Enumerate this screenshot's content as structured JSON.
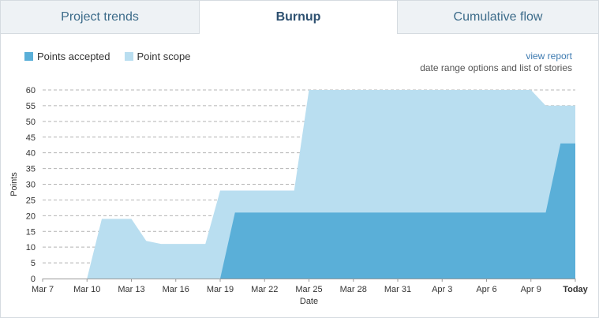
{
  "tabs": [
    {
      "label": "Project trends"
    },
    {
      "label": "Burnup"
    },
    {
      "label": "Cumulative flow"
    }
  ],
  "links": {
    "view_report": "view report",
    "subtext": "date range options and list of stories"
  },
  "colors": {
    "accepted": "#5aafd8",
    "scope": "#b9def0",
    "grid": "#b4b4b4",
    "axis": "#999999"
  },
  "chart_data": {
    "type": "area",
    "xlabel": "Date",
    "ylabel": "Points",
    "ylim": [
      0,
      60
    ],
    "yticks": [
      0,
      5,
      10,
      15,
      20,
      25,
      30,
      35,
      40,
      45,
      50,
      55,
      60
    ],
    "x_tick_labels": [
      "Mar 7",
      "Mar 10",
      "Mar 13",
      "Mar 16",
      "Mar 19",
      "Mar 22",
      "Mar 25",
      "Mar 28",
      "Mar 31",
      "Apr 3",
      "Apr 6",
      "Apr 9",
      "Today"
    ],
    "grid": true,
    "legend_position": "top-left",
    "series": [
      {
        "name": "Point scope",
        "x": [
          "Mar 7",
          "Mar 8",
          "Mar 9",
          "Mar 10",
          "Mar 11",
          "Mar 12",
          "Mar 13",
          "Mar 14",
          "Mar 15",
          "Mar 16",
          "Mar 17",
          "Mar 18",
          "Mar 19",
          "Mar 20",
          "Mar 21",
          "Mar 22",
          "Mar 23",
          "Mar 24",
          "Mar 25",
          "Mar 26",
          "Apr 9",
          "Apr 10",
          "Apr 11",
          "Today"
        ],
        "values": [
          0,
          0,
          0,
          0,
          19,
          19,
          19,
          12,
          11,
          11,
          11,
          11,
          28,
          28,
          28,
          28,
          28,
          28,
          60,
          60,
          60,
          55,
          55,
          55
        ]
      },
      {
        "name": "Points accepted",
        "x": [
          "Mar 7",
          "Mar 8",
          "Mar 9",
          "Mar 10",
          "Mar 11",
          "Mar 12",
          "Mar 13",
          "Mar 14",
          "Mar 15",
          "Mar 16",
          "Mar 17",
          "Mar 18",
          "Mar 19",
          "Mar 20",
          "Apr 9",
          "Apr 10",
          "Apr 11",
          "Today"
        ],
        "values": [
          0,
          0,
          0,
          0,
          0,
          0,
          0,
          0,
          0,
          0,
          0,
          0,
          0,
          21,
          21,
          21,
          43,
          43
        ]
      }
    ]
  }
}
